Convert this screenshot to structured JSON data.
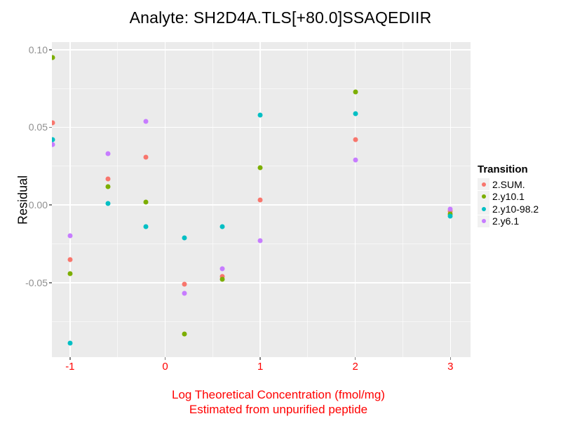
{
  "title": "Analyte: SH2D4A.TLS[+80.0]SSAQEDIIR",
  "colors": {
    "panel_bg": "#EBEBEB",
    "gridline": "#FFFFFF",
    "axis_warning_red": "#FF0000",
    "y_tick_label_gray": "#8F8F8F",
    "tick_mark_gray": "#7F7F7F",
    "series_red": "#F8766D",
    "series_green": "#7CAE00",
    "series_teal": "#00BFC4",
    "series_purple": "#C77CFF"
  },
  "legend": {
    "title": "Transition",
    "items": [
      {
        "label": "2.SUM.",
        "color": "#F8766D",
        "dot_icon": "legend-dot-red"
      },
      {
        "label": "2.y10.1",
        "color": "#7CAE00",
        "dot_icon": "legend-dot-green"
      },
      {
        "label": "2.y10-98.2",
        "color": "#00BFC4",
        "dot_icon": "legend-dot-teal"
      },
      {
        "label": "2.y6.1",
        "color": "#C77CFF",
        "dot_icon": "legend-dot-purple"
      }
    ]
  },
  "chart_data": {
    "type": "scatter",
    "title": "Analyte: SH2D4A.TLS[+80.0]SSAQEDIIR",
    "xlabel_line1": "Log Theoretical Concentration (fmol/mg)",
    "xlabel_line2": "Estimated from unpurified peptide",
    "ylabel": "Residual",
    "legend_title": "Transition",
    "legend_position": "right",
    "grid": "on",
    "xlim": [
      -1.1907,
      3.2112
    ],
    "ylim": [
      -0.098,
      0.1049
    ],
    "x_major_ticks": [
      -1,
      0,
      1,
      2,
      3
    ],
    "x_tick_labels": [
      "-1",
      "0",
      "1",
      "2",
      "3"
    ],
    "x_minor_ticks": [
      -0.5,
      0.5,
      1.5,
      2.5
    ],
    "y_major_ticks": [
      0.1,
      0.05,
      0.0,
      -0.05
    ],
    "y_tick_labels": [
      "0.10",
      "0.05",
      "0.00",
      "-0.05"
    ],
    "y_minor_ticks": [
      0.075,
      0.025,
      -0.025,
      -0.075
    ],
    "series": [
      {
        "name": "2.SUM.",
        "color": "#F8766D",
        "points": [
          [
            -1.18,
            0.053
          ],
          [
            -1.0,
            -0.035
          ],
          [
            -0.6,
            0.017
          ],
          [
            -0.2,
            0.031
          ],
          [
            0.2,
            -0.051
          ],
          [
            0.6,
            -0.046
          ],
          [
            1.0,
            0.003
          ],
          [
            2.0,
            0.042
          ],
          [
            3.0,
            -0.004
          ]
        ]
      },
      {
        "name": "2.y10.1",
        "color": "#7CAE00",
        "points": [
          [
            -1.18,
            0.095
          ],
          [
            -1.0,
            -0.044
          ],
          [
            -0.6,
            0.012
          ],
          [
            -0.2,
            0.002
          ],
          [
            0.2,
            -0.083
          ],
          [
            0.6,
            -0.048
          ],
          [
            1.0,
            0.024
          ],
          [
            2.0,
            0.073
          ],
          [
            3.0,
            -0.006
          ]
        ]
      },
      {
        "name": "2.y10-98.2",
        "color": "#00BFC4",
        "points": [
          [
            -1.18,
            0.042
          ],
          [
            -1.0,
            -0.089
          ],
          [
            -0.6,
            0.001
          ],
          [
            -0.2,
            -0.014
          ],
          [
            0.2,
            -0.021
          ],
          [
            0.6,
            -0.014
          ],
          [
            1.0,
            0.058
          ],
          [
            2.0,
            0.059
          ],
          [
            3.0,
            -0.007
          ]
        ]
      },
      {
        "name": "2.y6.1",
        "color": "#C77CFF",
        "points": [
          [
            -1.18,
            0.039
          ],
          [
            -1.0,
            -0.02
          ],
          [
            -0.6,
            0.033
          ],
          [
            -0.2,
            0.054
          ],
          [
            0.2,
            -0.057
          ],
          [
            0.6,
            -0.041
          ],
          [
            1.0,
            -0.023
          ],
          [
            2.0,
            0.029
          ],
          [
            3.0,
            -0.0025
          ]
        ]
      }
    ]
  }
}
